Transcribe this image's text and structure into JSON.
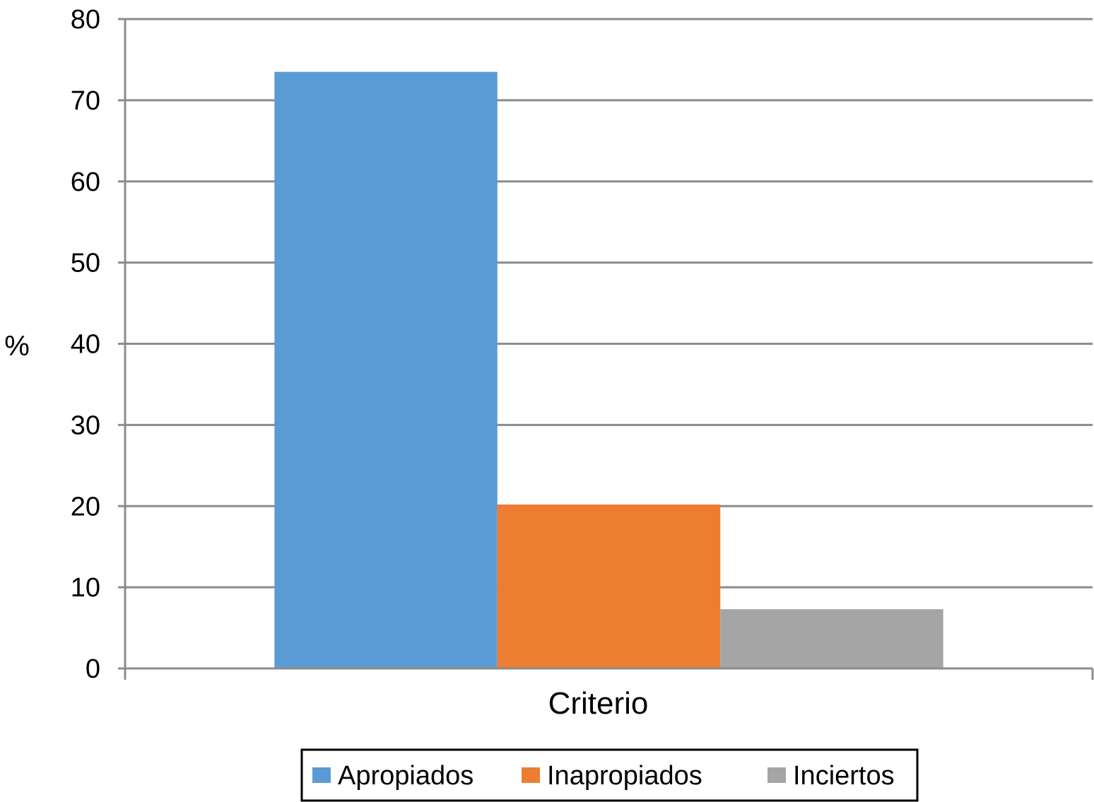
{
  "chart_data": {
    "type": "bar",
    "categories": [
      "Criterio"
    ],
    "series": [
      {
        "name": "Apropiados",
        "values": [
          73.5
        ],
        "color": "#5b9bd5"
      },
      {
        "name": "Inapropiados",
        "values": [
          20.2
        ],
        "color": "#ed7d31"
      },
      {
        "name": "Inciertos",
        "values": [
          7.3
        ],
        "color": "#a5a5a5"
      }
    ],
    "title": "",
    "xlabel": "",
    "ylabel": "%",
    "ylim": [
      0,
      80
    ],
    "yticks": [
      0,
      10,
      20,
      30,
      40,
      50,
      60,
      70,
      80
    ],
    "grid": true,
    "legend_position": "bottom"
  }
}
